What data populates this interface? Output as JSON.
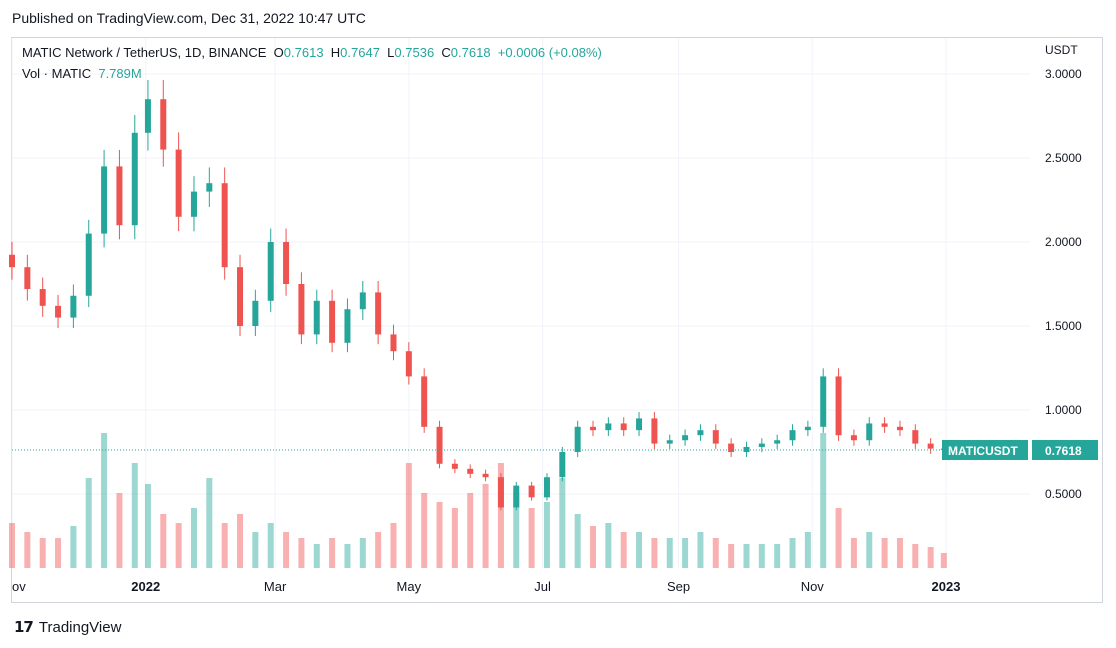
{
  "header": {
    "published": "Published on TradingView.com, Dec 31, 2022 10:47 UTC"
  },
  "legend": {
    "pair": "MATIC Network / TetherUS, 1D, BINANCE",
    "o_label": "O",
    "o_value": "0.7613",
    "h_label": "H",
    "h_value": "0.7647",
    "l_label": "L",
    "l_value": "0.7536",
    "c_label": "C",
    "c_value": "0.7618",
    "change": "+0.0006 (+0.08%)",
    "vol_label": "Vol · MATIC",
    "vol_value": "7.789M"
  },
  "price_tag": {
    "symbol": "MATICUSDT",
    "value": "0.7618"
  },
  "footer": {
    "brand": "TradingView"
  },
  "colors": {
    "up": "#26a69a",
    "down": "#ef5350",
    "grid": "#f0f3fa",
    "tag": "#26a69a"
  },
  "chart_data": {
    "type": "candlestick",
    "currency": "USDT",
    "x_ticks": [
      "ov",
      "2022",
      "Mar",
      "May",
      "Jul",
      "Sep",
      "Nov",
      "2023"
    ],
    "x_tick_dates": [
      "2021-11-01",
      "2022-01-01",
      "2022-03-01",
      "2022-05-01",
      "2022-07-01",
      "2022-09-01",
      "2022-11-01",
      "2023-01-01"
    ],
    "y_ticks": [
      "3.0000",
      "2.5000",
      "2.0000",
      "1.5000",
      "1.0000",
      "0.5000"
    ],
    "y_tick_values": [
      3.0,
      2.5,
      2.0,
      1.5,
      1.0,
      0.5
    ],
    "x_range": [
      "2021-11-01",
      "2023-01-01"
    ],
    "y_range": [
      0.32,
      3.08
    ],
    "last_close": 0.7618,
    "close_series": [
      [
        "2021-11-01",
        1.85
      ],
      [
        "2021-11-08",
        1.72
      ],
      [
        "2021-11-15",
        1.62
      ],
      [
        "2021-11-22",
        1.55
      ],
      [
        "2021-11-29",
        1.68
      ],
      [
        "2021-12-06",
        2.05
      ],
      [
        "2021-12-13",
        2.45
      ],
      [
        "2021-12-20",
        2.1
      ],
      [
        "2021-12-27",
        2.65
      ],
      [
        "2022-01-02",
        2.85
      ],
      [
        "2022-01-09",
        2.55
      ],
      [
        "2022-01-16",
        2.15
      ],
      [
        "2022-01-23",
        2.3
      ],
      [
        "2022-01-30",
        2.35
      ],
      [
        "2022-02-06",
        1.85
      ],
      [
        "2022-02-13",
        1.5
      ],
      [
        "2022-02-20",
        1.65
      ],
      [
        "2022-02-27",
        2.0
      ],
      [
        "2022-03-06",
        1.75
      ],
      [
        "2022-03-13",
        1.45
      ],
      [
        "2022-03-20",
        1.65
      ],
      [
        "2022-03-27",
        1.4
      ],
      [
        "2022-04-03",
        1.6
      ],
      [
        "2022-04-10",
        1.7
      ],
      [
        "2022-04-17",
        1.45
      ],
      [
        "2022-04-24",
        1.35
      ],
      [
        "2022-05-01",
        1.2
      ],
      [
        "2022-05-08",
        0.9
      ],
      [
        "2022-05-15",
        0.68
      ],
      [
        "2022-05-22",
        0.65
      ],
      [
        "2022-05-29",
        0.62
      ],
      [
        "2022-06-05",
        0.6
      ],
      [
        "2022-06-12",
        0.42
      ],
      [
        "2022-06-19",
        0.55
      ],
      [
        "2022-06-26",
        0.48
      ],
      [
        "2022-07-03",
        0.6
      ],
      [
        "2022-07-10",
        0.75
      ],
      [
        "2022-07-17",
        0.9
      ],
      [
        "2022-07-24",
        0.88
      ],
      [
        "2022-07-31",
        0.92
      ],
      [
        "2022-08-07",
        0.88
      ],
      [
        "2022-08-14",
        0.95
      ],
      [
        "2022-08-21",
        0.8
      ],
      [
        "2022-08-28",
        0.82
      ],
      [
        "2022-09-04",
        0.85
      ],
      [
        "2022-09-11",
        0.88
      ],
      [
        "2022-09-18",
        0.8
      ],
      [
        "2022-09-25",
        0.75
      ],
      [
        "2022-10-02",
        0.78
      ],
      [
        "2022-10-09",
        0.8
      ],
      [
        "2022-10-16",
        0.82
      ],
      [
        "2022-10-23",
        0.88
      ],
      [
        "2022-10-30",
        0.9
      ],
      [
        "2022-11-06",
        1.2
      ],
      [
        "2022-11-13",
        0.85
      ],
      [
        "2022-11-20",
        0.82
      ],
      [
        "2022-11-27",
        0.92
      ],
      [
        "2022-12-04",
        0.9
      ],
      [
        "2022-12-11",
        0.88
      ],
      [
        "2022-12-18",
        0.8
      ],
      [
        "2022-12-25",
        0.77
      ],
      [
        "2022-12-31",
        0.7618
      ]
    ],
    "volume_series": [
      0.15,
      0.12,
      0.1,
      0.1,
      0.14,
      0.3,
      0.45,
      0.25,
      0.35,
      0.28,
      0.18,
      0.15,
      0.2,
      0.3,
      0.15,
      0.18,
      0.12,
      0.15,
      0.12,
      0.1,
      0.08,
      0.1,
      0.08,
      0.1,
      0.12,
      0.15,
      0.35,
      0.25,
      0.22,
      0.2,
      0.25,
      0.28,
      0.35,
      0.25,
      0.2,
      0.22,
      0.3,
      0.18,
      0.14,
      0.15,
      0.12,
      0.12,
      0.1,
      0.1,
      0.1,
      0.12,
      0.1,
      0.08,
      0.08,
      0.08,
      0.08,
      0.1,
      0.12,
      0.45,
      0.2,
      0.1,
      0.12,
      0.1,
      0.1,
      0.08,
      0.07,
      0.05
    ]
  }
}
